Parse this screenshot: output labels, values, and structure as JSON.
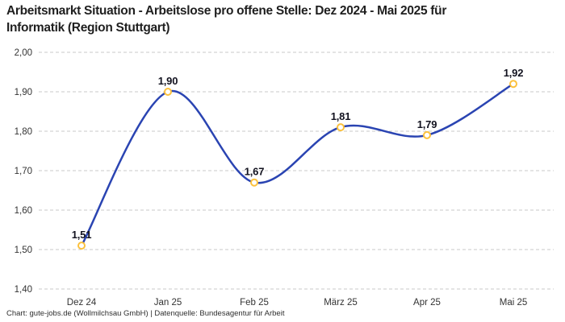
{
  "title_lines": [
    "Arbeitsmarkt Situation - Arbeitslose pro offene Stelle: Dez 2024 - Mai 2025 für",
    "Informatik (Region Stuttgart)"
  ],
  "footer": {
    "attribution": "Chart: gute-jobs.de (Wollmilchsau GmbH) | Datenquelle: Bundesagentur für Arbeit"
  },
  "chart_data": {
    "type": "line",
    "title": "Arbeitsmarkt Situation - Arbeitslose pro offene Stelle: Dez 2024 - Mai 2025 für Informatik (Region Stuttgart)",
    "categories": [
      "Dez 24",
      "Jan 25",
      "Feb 25",
      "März 25",
      "Apr 25",
      "Mai 25"
    ],
    "values": [
      1.51,
      1.9,
      1.67,
      1.81,
      1.79,
      1.92
    ],
    "value_labels": [
      "1,51",
      "1,90",
      "1,67",
      "1,81",
      "1,79",
      "1,92"
    ],
    "y_ticks": [
      "2,00",
      "1,90",
      "1,80",
      "1,70",
      "1,60",
      "1,50",
      "1,40"
    ],
    "y_tick_values": [
      2.0,
      1.9,
      1.8,
      1.7,
      1.6,
      1.5,
      1.4
    ],
    "ylim": [
      1.4,
      2.0
    ],
    "xlabel": "",
    "ylabel": "",
    "legend": "none",
    "grid": "horizontal-dashed",
    "curve": "smooth",
    "colors": {
      "line": "#2a44b2",
      "marker_ring": "#fcc13c",
      "marker_fill": "#ffffff",
      "data_label": "#12121f",
      "axis_text": "#333333",
      "grid_line": "#c9c9c9",
      "background": "#ffffff"
    }
  }
}
